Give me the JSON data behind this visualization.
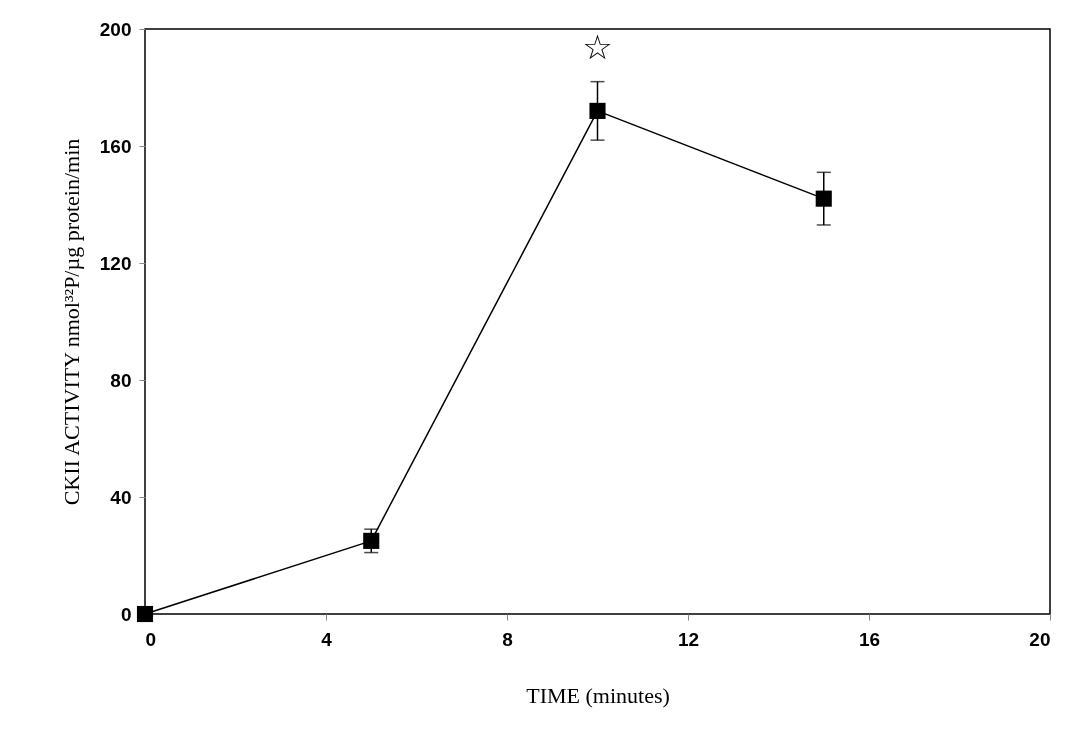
{
  "chart_data": {
    "type": "line",
    "xlabel": "TIME (minutes)",
    "ylabel": "CKII ACTIVITY nmol³²P/µg protein/min",
    "x": [
      0,
      5,
      10,
      15
    ],
    "series": [
      {
        "color": "#000000",
        "values": [
          0,
          25,
          172,
          142
        ],
        "errors": [
          null,
          4,
          10,
          9
        ]
      }
    ],
    "xlim": [
      0,
      20
    ],
    "xticks": [
      0,
      4,
      8,
      12,
      16,
      20
    ],
    "ylim": [
      0,
      200
    ],
    "yticks": [
      0,
      40,
      80,
      120,
      160,
      200
    ],
    "marker": "square",
    "line_style": "solid",
    "grid": false,
    "annotations": [
      "☆"
    ]
  }
}
